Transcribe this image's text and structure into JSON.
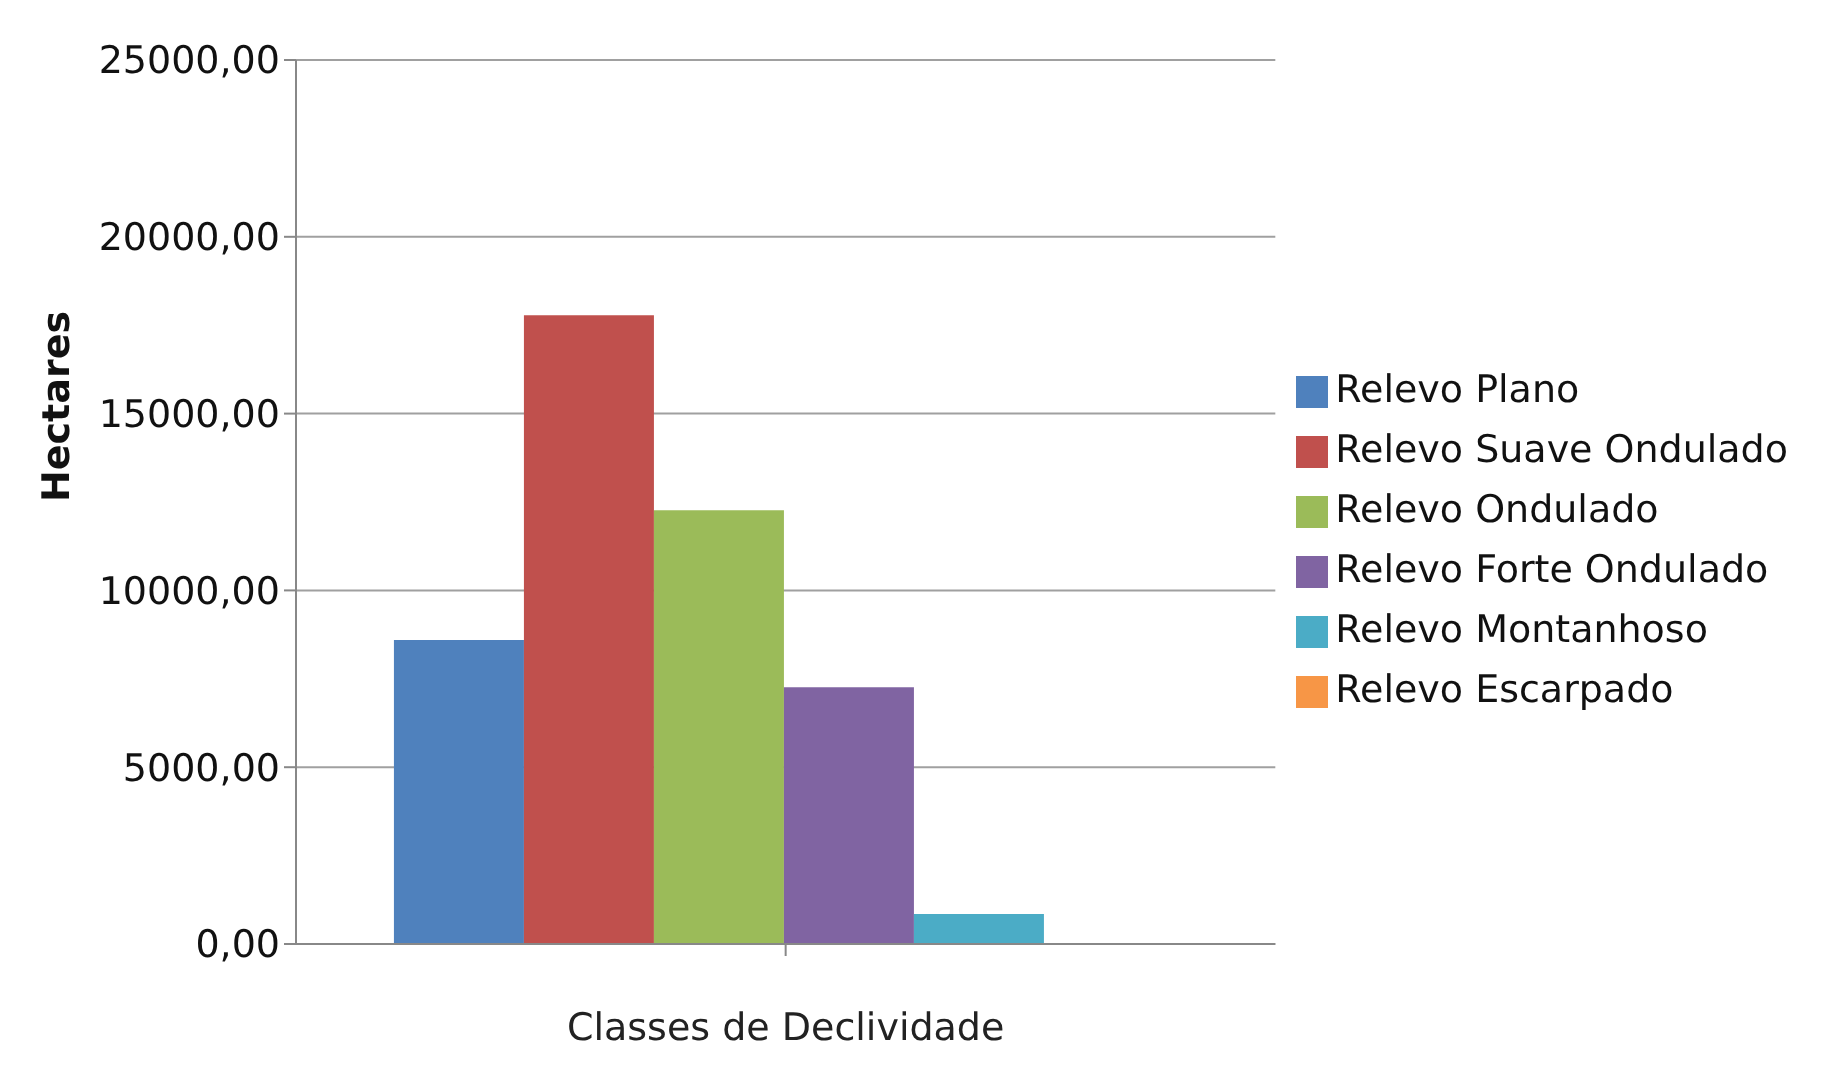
{
  "chart_data": {
    "type": "bar",
    "xlabel": "Classes de Declividade",
    "ylabel": "Hectares",
    "categories": [
      null
    ],
    "series": [
      {
        "name": "Relevo Plano",
        "color": "#4f81bd",
        "values": [
          8600
        ]
      },
      {
        "name": "Relevo Suave Ondulado",
        "color": "#c0504d",
        "values": [
          17780
        ]
      },
      {
        "name": "Relevo Ondulado",
        "color": "#9bbb59",
        "values": [
          12270
        ]
      },
      {
        "name": "Relevo Forte Ondulado",
        "color": "#8064a2",
        "values": [
          7260
        ]
      },
      {
        "name": "Relevo Montanhoso",
        "color": "#4bacc6",
        "values": [
          850
        ]
      },
      {
        "name": "Relevo Escarpado",
        "color": "#f79646",
        "values": [
          0
        ]
      }
    ],
    "ylim": [
      0,
      25000
    ],
    "yticks": [
      {
        "value": 0,
        "label": "0,00"
      },
      {
        "value": 5000,
        "label": "5000,00"
      },
      {
        "value": 10000,
        "label": "10000,00"
      },
      {
        "value": 15000,
        "label": "15000,00"
      },
      {
        "value": 20000,
        "label": "20000,00"
      },
      {
        "value": 25000,
        "label": "25000,00"
      }
    ],
    "grid": "y",
    "legend": "right"
  }
}
